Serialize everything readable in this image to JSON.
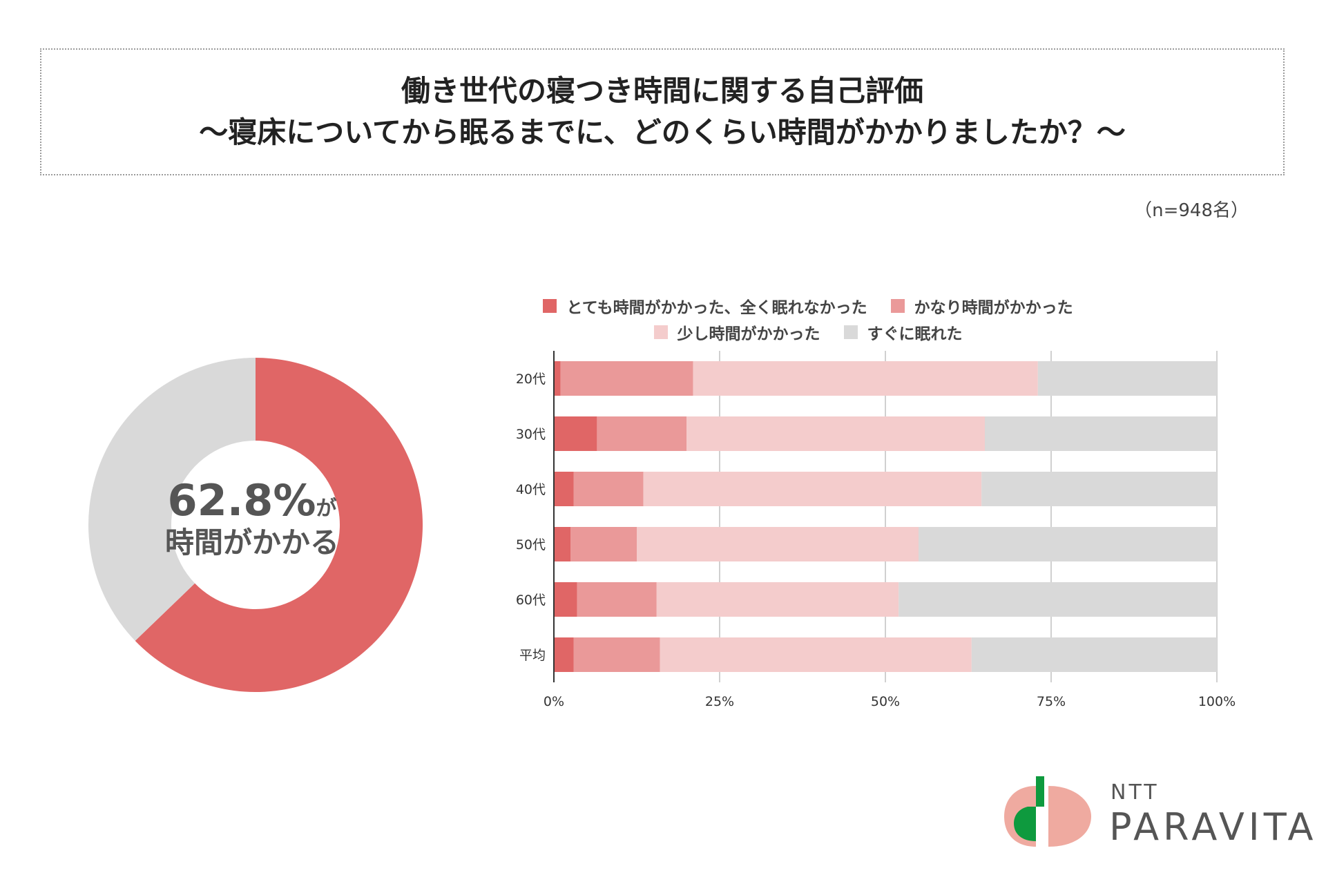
{
  "title": {
    "line1": "働き世代の寝つき時間に関する自己評価",
    "line2": "〜寝床についてから眠るまでに、どのくらい時間がかかりましたか？〜"
  },
  "sample_size": "（n=948名）",
  "donut": {
    "value": "62.8%",
    "suffix": "が",
    "caption": "時間がかかる",
    "percent": 62.8,
    "color_main": "#e06666",
    "color_rest": "#d9d9d9"
  },
  "logo": {
    "ntt": "NTT",
    "name": "PARAVITA"
  },
  "chart_data": {
    "type": "bar",
    "orientation": "horizontal-stacked-100",
    "categories": [
      "20代",
      "30代",
      "40代",
      "50代",
      "60代",
      "平均"
    ],
    "series": [
      {
        "name": "とても時間がかかった、全く眠れなかった",
        "color": "#e06666",
        "values": [
          1,
          6.5,
          3,
          2.5,
          3.5,
          3
        ]
      },
      {
        "name": "かなり時間がかかった",
        "color": "#ea9999",
        "values": [
          20,
          13.5,
          10.5,
          10,
          12,
          13
        ]
      },
      {
        "name": "少し時間がかかった",
        "color": "#f4cccc",
        "values": [
          52,
          45,
          51,
          42.5,
          36.5,
          47
        ]
      },
      {
        "name": "すぐに眠れた",
        "color": "#d9d9d9",
        "values": [
          27,
          35,
          35.5,
          45,
          48,
          37
        ]
      }
    ],
    "x_ticks": [
      "0%",
      "25%",
      "50%",
      "75%",
      "100%"
    ],
    "xlim": [
      0,
      100
    ],
    "grid": true,
    "legend_position": "top"
  }
}
